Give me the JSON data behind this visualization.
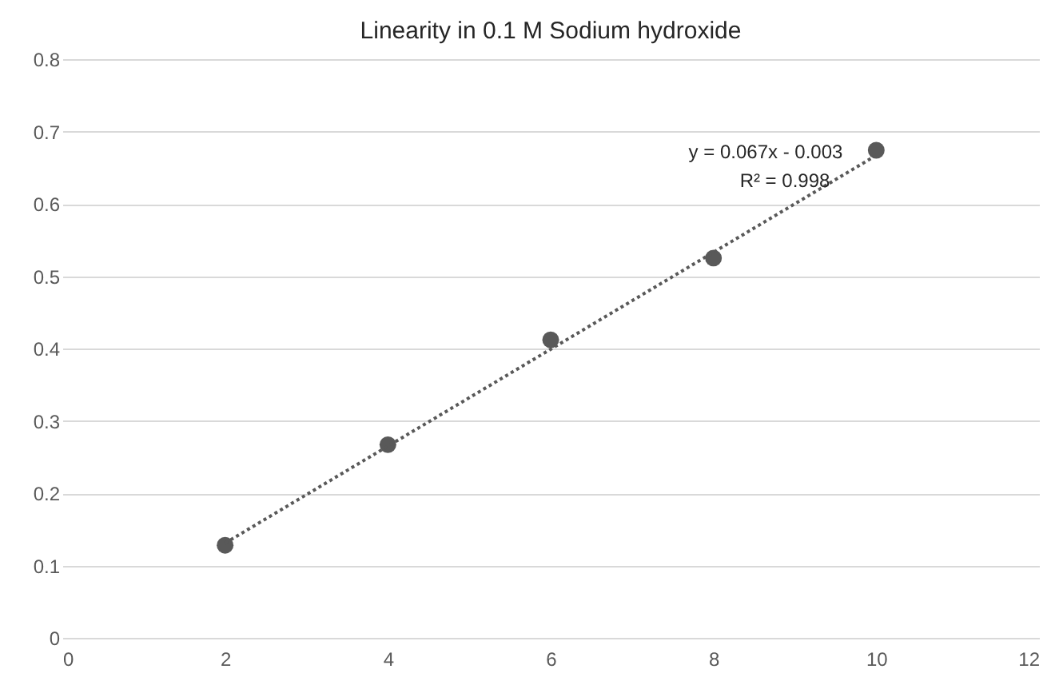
{
  "chart_data": {
    "type": "scatter",
    "title": "Linearity in 0.1 M Sodium hydroxide",
    "x": [
      2,
      4,
      6,
      8,
      10
    ],
    "series": [
      {
        "color": "#595959",
        "marker": "circle",
        "values": [
          0.128,
          0.267,
          0.412,
          0.525,
          0.674
        ]
      },
      {
        "type": "line",
        "color": "#595959",
        "line_style": "dotted",
        "marker": "none",
        "x": [
          2,
          10
        ],
        "values": [
          0.131,
          0.667
        ]
      }
    ],
    "xlim": [
      0,
      12
    ],
    "xticks": [
      0,
      2,
      4,
      6,
      8,
      10,
      12
    ],
    "ylim": [
      0,
      0.8
    ],
    "yticks": [
      0,
      0.1,
      0.2,
      0.3,
      0.4,
      0.5,
      0.6,
      0.7,
      0.8
    ],
    "grid": "y",
    "annotations": [
      "y = 0.067x - 0.003",
      "R² = 0.998"
    ]
  }
}
